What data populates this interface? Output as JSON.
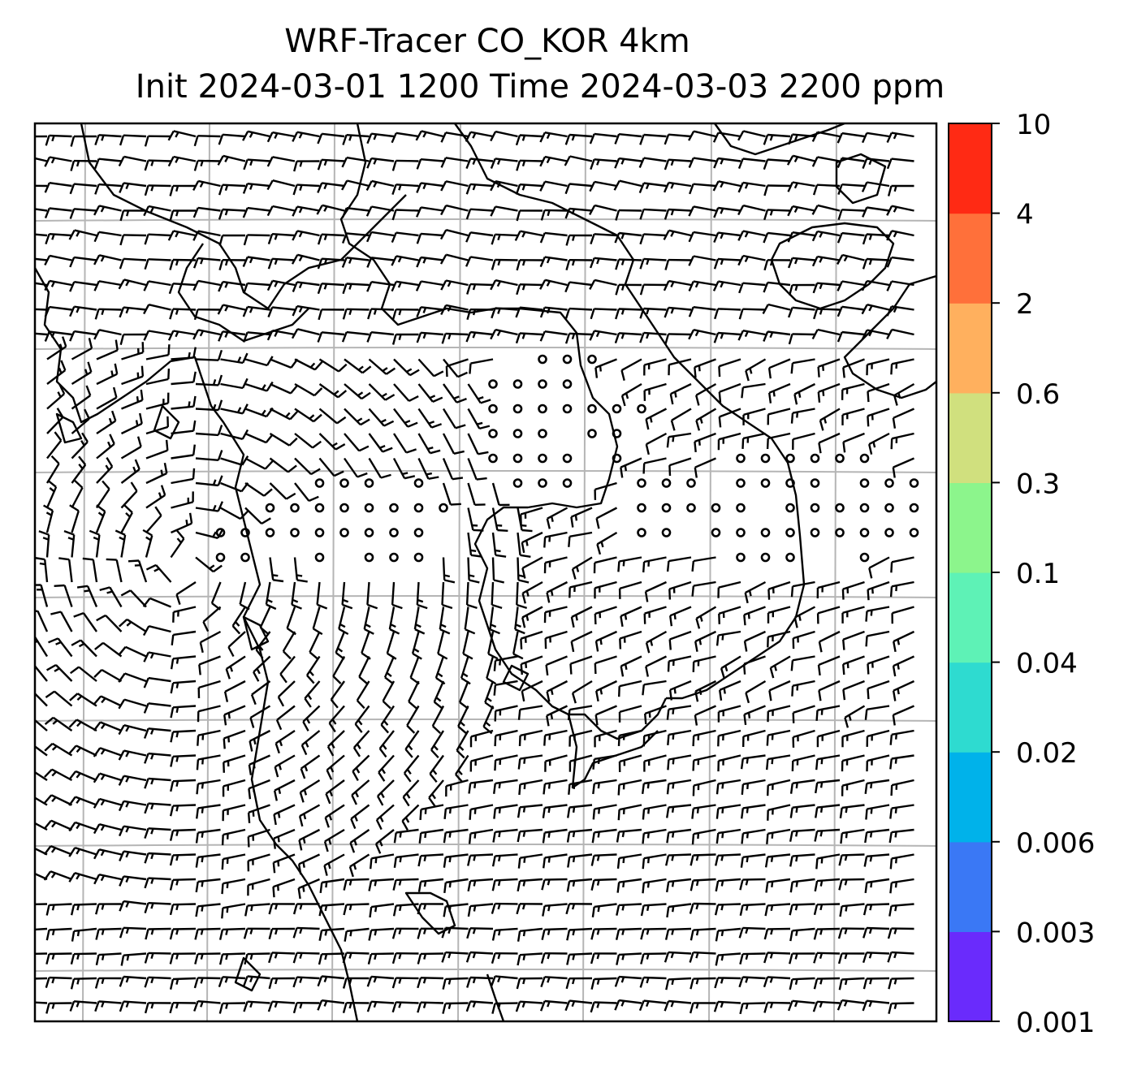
{
  "title_line1": "WRF-Tracer CO_KOR 4km",
  "title_line2": "Init 2024-03-01 1200 Time 2024-03-03 2200 ppm",
  "colorbar": {
    "ticks": [
      "0.001",
      "0.003",
      "0.006",
      "0.02",
      "0.04",
      "0.1",
      "0.3",
      "0.6",
      "2",
      "4",
      "10"
    ],
    "colors": [
      "#6a2bfc",
      "#3a78f5",
      "#00b2ea",
      "#2edbd0",
      "#5ef2b6",
      "#8cf58c",
      "#d0e07e",
      "#ffb05e",
      "#ff703a",
      "#ff2a14"
    ]
  },
  "map": {
    "wind_barbs": "black",
    "calm_markers": "circles",
    "gridlines": "gray",
    "coastlines": "black"
  }
}
